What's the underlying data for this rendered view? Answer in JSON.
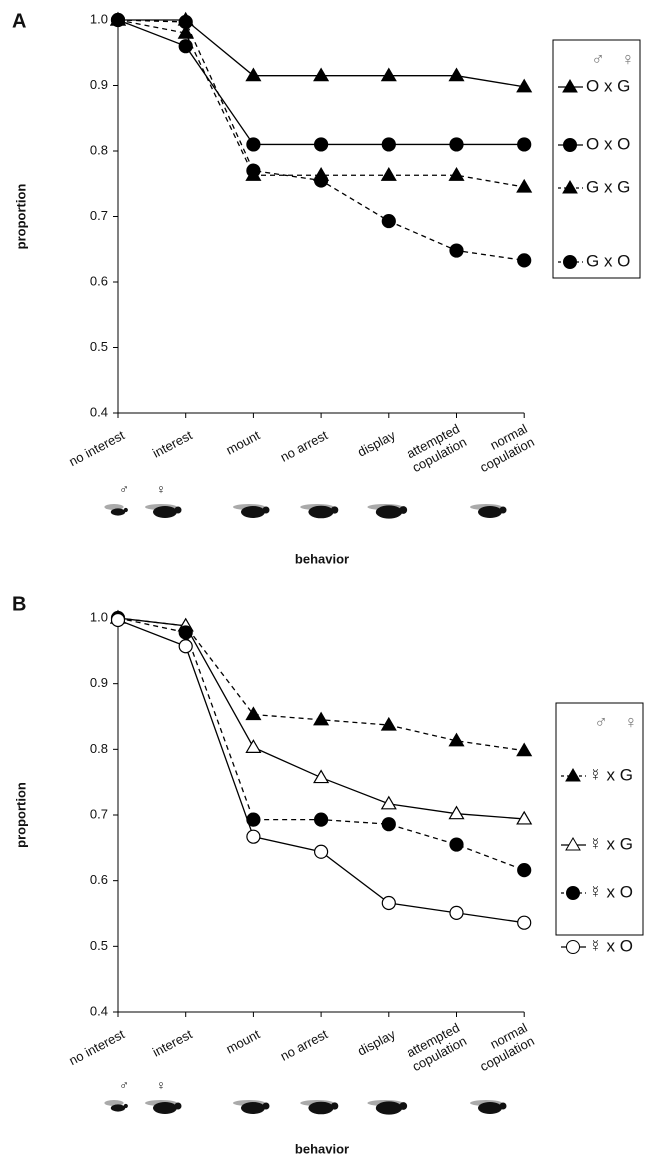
{
  "chart_data": [
    {
      "type": "line",
      "title": "A",
      "x_label": "behavior",
      "y_label": "proportion",
      "legend_header": [
        "♂",
        "♀"
      ],
      "figure_symbols": [
        "♂",
        "♀"
      ],
      "categories": [
        "no interest",
        "interest",
        "mount",
        "no arrest",
        "display",
        "attempted\ncopulation",
        "normal\ncopulation"
      ],
      "ylim": [
        0.4,
        1.0
      ],
      "yticks": [
        {
          "value": 1.0,
          "label": "1.0"
        },
        0.9,
        0.8,
        0.7,
        0.6,
        0.5,
        0.4
      ],
      "legend": "right",
      "series": [
        {
          "name": "O x G",
          "color": "#000000",
          "marker": "triangle",
          "fill": true,
          "dash": false,
          "values": [
            1.0,
            1.0,
            0.915,
            0.915,
            0.915,
            0.915,
            0.898
          ]
        },
        {
          "name": "O x O",
          "color": "#000000",
          "marker": "circle",
          "fill": true,
          "dash": false,
          "values": [
            1.0,
            0.96,
            0.81,
            0.81,
            0.81,
            0.81,
            0.81
          ]
        },
        {
          "name": "G x G",
          "color": "#000000",
          "marker": "triangle",
          "fill": true,
          "dash": true,
          "values": [
            1.0,
            0.98,
            0.763,
            0.763,
            0.763,
            0.763,
            0.745
          ]
        },
        {
          "name": "G x O",
          "color": "#000000",
          "marker": "circle",
          "fill": true,
          "dash": true,
          "values": [
            1.0,
            0.997,
            0.77,
            0.755,
            0.693,
            0.648,
            0.633
          ]
        }
      ]
    },
    {
      "type": "line",
      "title": "B",
      "x_label": "behavior",
      "y_label": "proportion",
      "legend_header": [
        "♂",
        "♀"
      ],
      "figure_symbols": [
        "♂",
        "♀"
      ],
      "categories": [
        "no interest",
        "interest",
        "mount",
        "no arrest",
        "display",
        "attempted\ncopulation",
        "normal\ncopulation"
      ],
      "ylim": [
        0.4,
        1.0
      ],
      "yticks": [
        {
          "value": 1.0,
          "label": "1.0"
        },
        0.9,
        0.8,
        0.7,
        0.6,
        0.5,
        0.4
      ],
      "legend": "right",
      "series": [
        {
          "name": "☿ x G",
          "color": "#000000",
          "marker": "triangle",
          "fill": true,
          "dash": true,
          "values": [
            1.0,
            0.988,
            0.853,
            0.845,
            0.837,
            0.813,
            0.798
          ]
        },
        {
          "name": "☿ x G",
          "color": "#000000",
          "marker": "triangle",
          "fill": false,
          "dash": false,
          "values": [
            1.0,
            0.988,
            0.803,
            0.757,
            0.717,
            0.702,
            0.694
          ]
        },
        {
          "name": "☿ x O",
          "color": "#000000",
          "marker": "circle",
          "fill": true,
          "dash": true,
          "values": [
            1.0,
            0.978,
            0.693,
            0.693,
            0.686,
            0.655,
            0.616
          ]
        },
        {
          "name": "☿ x O",
          "color": "#000000",
          "marker": "circle",
          "fill": false,
          "dash": false,
          "values": [
            0.997,
            0.957,
            0.667,
            0.644,
            0.566,
            0.551,
            0.536
          ]
        }
      ]
    }
  ]
}
